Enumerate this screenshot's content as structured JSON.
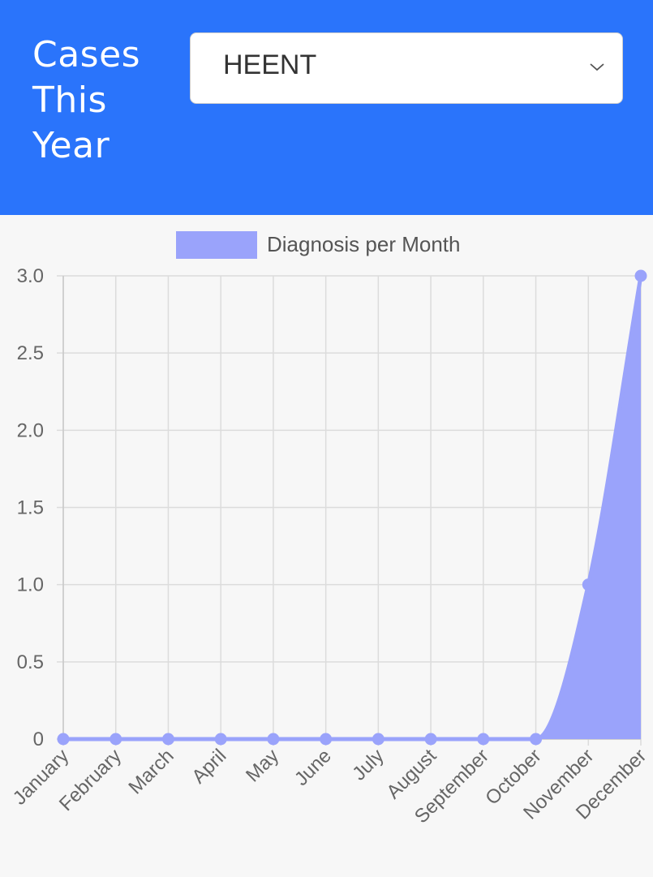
{
  "header": {
    "title": "Cases This Year"
  },
  "filter": {
    "selected": "HEENT"
  },
  "icons": {
    "dropdown": "chevron-down-icon"
  },
  "colors": {
    "header_bg": "#2a74fb",
    "series_fill": "#9aa3fb",
    "series_line": "#9aa3fb"
  },
  "chart_data": {
    "type": "area",
    "categories": [
      "January",
      "February",
      "March",
      "April",
      "May",
      "June",
      "July",
      "August",
      "September",
      "October",
      "November",
      "December"
    ],
    "series": [
      {
        "name": "Diagnosis per Month",
        "values": [
          0,
          0,
          0,
          0,
          0,
          0,
          0,
          0,
          0,
          0,
          1,
          3
        ]
      }
    ],
    "ylim": [
      0,
      3
    ],
    "yticks": [
      "0",
      "0.5",
      "1.0",
      "1.5",
      "2.0",
      "2.5",
      "3.0"
    ],
    "legend": "top",
    "grid": true
  }
}
